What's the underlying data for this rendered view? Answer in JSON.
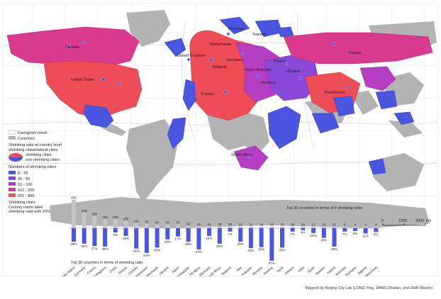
{
  "map": {
    "country_labels": [
      "Canada",
      "United States",
      "Denmark",
      "Sweden",
      "Netherlands",
      "United Kingdom",
      "Belgium",
      "Germany",
      "Poland",
      "Czech Republic",
      "Ukraine",
      "France",
      "Hungary",
      "Russia",
      "Kazakhstan",
      "South Africa"
    ],
    "legend": {
      "mesh_label": "Cartogram mesh",
      "countries_label": "Countries",
      "ratio_title": "Shrinking ratio at country level",
      "ratio_subtitle": "shrinking cities/natural cities",
      "ratio_shrinking": "shrinking cities",
      "ratio_non_shrinking": "non-shrinking cities",
      "numbers_title": "Numbers of shrinking cities",
      "classes": [
        {
          "label": "0 - 25",
          "color": "#4a56e0"
        },
        {
          "label": "26 - 50",
          "color": "#8a48d8"
        },
        {
          "label": "51 - 100",
          "color": "#b53ec2"
        },
        {
          "label": "101 - 200",
          "color": "#d93a8e"
        },
        {
          "label": "201 - 800",
          "color": "#ee4c56"
        }
      ],
      "shrinking_cities_label": "Shrinking cities",
      "country_name_label": "Country name label",
      "shrinking_ratio_label": "shrinking ratio with 10%"
    },
    "scale_bar": {
      "ticks": [
        "0",
        "1500",
        "3000"
      ],
      "unit": "km"
    },
    "credit": "Mapped by Beijing City Lab (LONG Ying, JIANG Zhidian, and ZHAI Weixin)"
  },
  "chart_data": {
    "type": "bar",
    "title": "Top 30 countries in terms of # shrinking cities",
    "subtitle": "Top 30 countries in terms of shrinking ratio",
    "categories": [
      "United States",
      "Germany",
      "France",
      "United Kingdom",
      "China",
      "Russia",
      "Canada",
      "Uzbekistan",
      "Netherlands",
      "Ukraine",
      "Japan",
      "Czech Republic",
      "Hungary",
      "Denmark",
      "South Africa",
      "Belgium",
      "Italy",
      "Pakistan",
      "Slovakia",
      "Norway",
      "Syria",
      "Mexico",
      "India",
      "Spain",
      "Sweden",
      "Ireland",
      "Australia",
      "Romania",
      "Nigeria",
      "Switzerland"
    ],
    "series": [
      {
        "values": [
          656,
          349,
          282,
          206,
          206,
          160,
          118,
          96,
          86,
          83,
          78,
          53,
          43,
          41,
          39,
          38,
          33,
          31,
          29,
          25,
          23,
          20,
          20,
          17,
          13,
          11,
          9,
          9,
          9,
          9
        ]
      },
      {
        "values": [
          28,
          32,
          37,
          38,
          9,
          16,
          42,
          51,
          40,
          23,
          17,
          28,
          44,
          16,
          32,
          7,
          28,
          41,
          39,
          67,
          40,
          7,
          4,
          10,
          20,
          38,
          7,
          6,
          11,
          8
        ]
      }
    ],
    "series_units": [
      "",
      "%"
    ],
    "color_upper": "#c5c5c5",
    "color_lower": "#4a56e0"
  }
}
